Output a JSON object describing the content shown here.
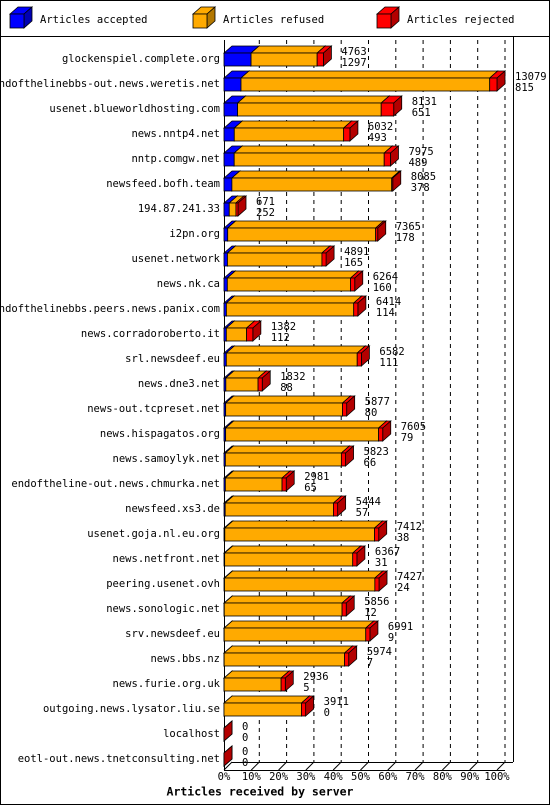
{
  "chart_data": {
    "type": "bar3d-stacked-horizontal",
    "x_label": "Articles received by server",
    "categories": [
      "glockenspiel.complete.org",
      "endofthelinebbs-out.news.weretis.net",
      "usenet.blueworldhosting.com",
      "news.nntp4.net",
      "nntp.comgw.net",
      "newsfeed.bofh.team",
      "194.87.241.33",
      "i2pn.org",
      "usenet.network",
      "news.nk.ca",
      "endofthelinebbs.peers.news.panix.com",
      "news.corradoroberto.it",
      "srl.newsdeef.eu",
      "news.dne3.net",
      "news-out.tcpreset.net",
      "news.hispagatos.org",
      "news.samoylyk.net",
      "endoftheline-out.news.chmurka.net",
      "newsfeed.xs3.de",
      "usenet.goja.nl.eu.org",
      "news.netfront.net",
      "peering.usenet.ovh",
      "news.sonologic.net",
      "srv.newsdeef.eu",
      "news.bbs.nz",
      "news.furie.org.uk",
      "outgoing.news.lysator.liu.se",
      "localhost",
      "eotl-out.news.tnetconsulting.net"
    ],
    "totals": [
      4763,
      13079,
      8131,
      6032,
      7975,
      8085,
      671,
      7365,
      4891,
      6264,
      6414,
      1382,
      6582,
      1832,
      5877,
      7605,
      5823,
      2981,
      5444,
      7412,
      6367,
      7427,
      5856,
      6991,
      5974,
      2936,
      3911,
      0,
      0
    ],
    "series": [
      {
        "name": "Articles accepted",
        "color": "#0000ff",
        "values": [
          1297,
          815,
          651,
          493,
          489,
          378,
          252,
          178,
          165,
          160,
          114,
          112,
          111,
          88,
          80,
          79,
          66,
          65,
          57,
          38,
          31,
          24,
          12,
          9,
          7,
          5,
          0,
          0,
          0
        ]
      },
      {
        "name": "Articles refused",
        "color": "#ffaa00",
        "values": [
          3166,
          11914,
          6880,
          5239,
          7186,
          7657,
          319,
          7087,
          4526,
          5904,
          6100,
          970,
          6271,
          1544,
          5597,
          7326,
          5557,
          2716,
          5187,
          7174,
          6136,
          7203,
          5644,
          6782,
          5767,
          2731,
          3711,
          0,
          0
        ]
      },
      {
        "name": "Articles rejected",
        "color": "#ff0000",
        "values": [
          300,
          350,
          600,
          300,
          300,
          50,
          100,
          100,
          200,
          200,
          200,
          300,
          200,
          200,
          200,
          200,
          200,
          200,
          200,
          200,
          200,
          200,
          200,
          200,
          200,
          200,
          200,
          0,
          0
        ]
      }
    ],
    "xlim": [
      0,
      13079
    ],
    "xticks": [
      {
        "value": 0,
        "label": "0%"
      },
      {
        "value": 1307.9,
        "label": "10%"
      },
      {
        "value": 2615.8,
        "label": "20%"
      },
      {
        "value": 3923.7,
        "label": "30%"
      },
      {
        "value": 5231.6,
        "label": "40%"
      },
      {
        "value": 6539.5,
        "label": "50%"
      },
      {
        "value": 7847.4,
        "label": "60%"
      },
      {
        "value": 9155.3,
        "label": "70%"
      },
      {
        "value": 10463.2,
        "label": "80%"
      },
      {
        "value": 11771.1,
        "label": "90%"
      },
      {
        "value": 13079,
        "label": "100%"
      }
    ],
    "grid": true
  }
}
